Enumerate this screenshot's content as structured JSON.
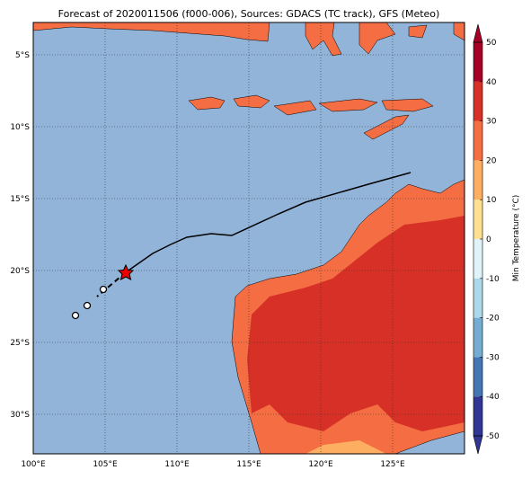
{
  "title": "Forecast of 2020011506 (f000-006), Sources: GDACS (TC track), GFS (Meteo)",
  "map": {
    "lonlim": [
      100,
      130
    ],
    "latlim": [
      -2.75,
      -32.75
    ],
    "lat_ticks": [
      {
        "value": -5,
        "label": "5°S"
      },
      {
        "value": -10,
        "label": "10°S"
      },
      {
        "value": -15,
        "label": "15°S"
      },
      {
        "value": -20,
        "label": "20°S"
      },
      {
        "value": -25,
        "label": "25°S"
      },
      {
        "value": -30,
        "label": "30°S"
      }
    ],
    "lon_ticks": [
      {
        "value": 100,
        "label": "100°E"
      },
      {
        "value": 105,
        "label": "105°E"
      },
      {
        "value": 110,
        "label": "110°E"
      },
      {
        "value": 115,
        "label": "115°E"
      },
      {
        "value": 120,
        "label": "120°E"
      },
      {
        "value": 125,
        "label": "125°E"
      }
    ]
  },
  "colorbar": {
    "label": "Min Temperature (°C)",
    "lim": [
      -50,
      50
    ],
    "ticks": [
      -50,
      -40,
      -30,
      -20,
      -10,
      0,
      10,
      20,
      30,
      40,
      50
    ],
    "colors": [
      "#313695",
      "#4575b4",
      "#74add1",
      "#abd9e9",
      "#e0f3f8",
      "#fee090",
      "#fdae61",
      "#f46d43",
      "#d73027",
      "#a50026"
    ]
  }
}
